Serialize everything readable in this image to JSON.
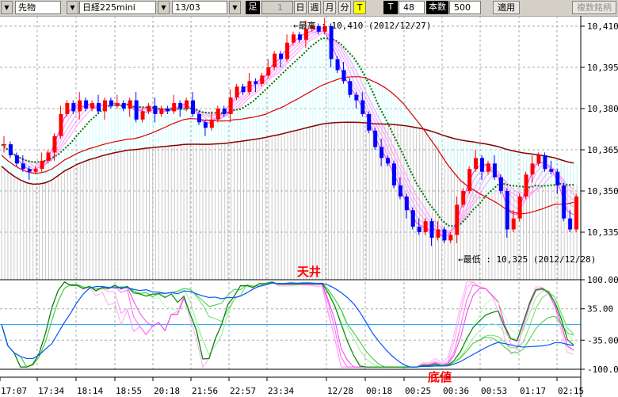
{
  "toolbar": {
    "market": "先物",
    "symbol": "日経225mini",
    "contract": "13/03",
    "bar_label": "足",
    "bar_value": "1",
    "day": "日",
    "week": "週",
    "month": "月",
    "minute": "分",
    "tick": "T",
    "t_label": "T",
    "t_value": "48",
    "count_label": "本数",
    "count_value": "500",
    "apply": "適用",
    "multi_symbol": "複数銘柄"
  },
  "price_axis": [
    "10,410",
    "10,395",
    "10,380",
    "10,365",
    "10,350",
    "10,335"
  ],
  "osc_axis": [
    "100.00",
    "35.00",
    "-35.00",
    "-100.0"
  ],
  "time_axis": [
    "17:07",
    "17:34",
    "18:14",
    "18:55",
    "20:18",
    "21:56",
    "22:57",
    "23:34",
    "12/28",
    "00:18",
    "00:25",
    "00:36",
    "00:53",
    "01:17",
    "02:15"
  ],
  "annotations": {
    "high": "←最高 : 10,410 (2012/12/27)",
    "low": "←最低 : 10,325 (2012/12/28)",
    "top": "天井",
    "bottom": "底値"
  },
  "colors": {
    "up": "#ff0000",
    "down": "#0000ff",
    "ma_short": "#ff66ff",
    "ma_green": "#007700",
    "ma_red": "#e00000",
    "ma_long": "#8b0000",
    "osc_blue": "#0055ff",
    "zero_line": "#33aaff",
    "accent_T": "#ffff00"
  },
  "chart_data": {
    "type": "candlestick",
    "ylim": [
      10325,
      10414
    ],
    "osc_ylim": [
      -100,
      100
    ],
    "closes": [
      10367,
      10363,
      10360,
      10358,
      10357,
      10358,
      10361,
      10364,
      10370,
      10378,
      10382,
      10379,
      10383,
      10380,
      10382,
      10379,
      10383,
      10381,
      10382,
      10380,
      10383,
      10376,
      10379,
      10381,
      10378,
      10380,
      10379,
      10382,
      10380,
      10383,
      10378,
      10375,
      10373,
      10376,
      10380,
      10378,
      10384,
      10388,
      10386,
      10390,
      10389,
      10392,
      10395,
      10400,
      10398,
      10404,
      10407,
      10405,
      10409,
      10410,
      10408,
      10410,
      10398,
      10394,
      10390,
      10385,
      10383,
      10378,
      10372,
      10366,
      10362,
      10360,
      10352,
      10348,
      10343,
      10337,
      10335,
      10339,
      10333,
      10336,
      10332,
      10334,
      10345,
      10350,
      10358,
      10362,
      10357,
      10360,
      10355,
      10350,
      10336,
      10340,
      10348,
      10356,
      10360,
      10363,
      10358,
      10357,
      10352,
      10340,
      10336,
      10348
    ],
    "high": 10410,
    "low": 10325
  }
}
